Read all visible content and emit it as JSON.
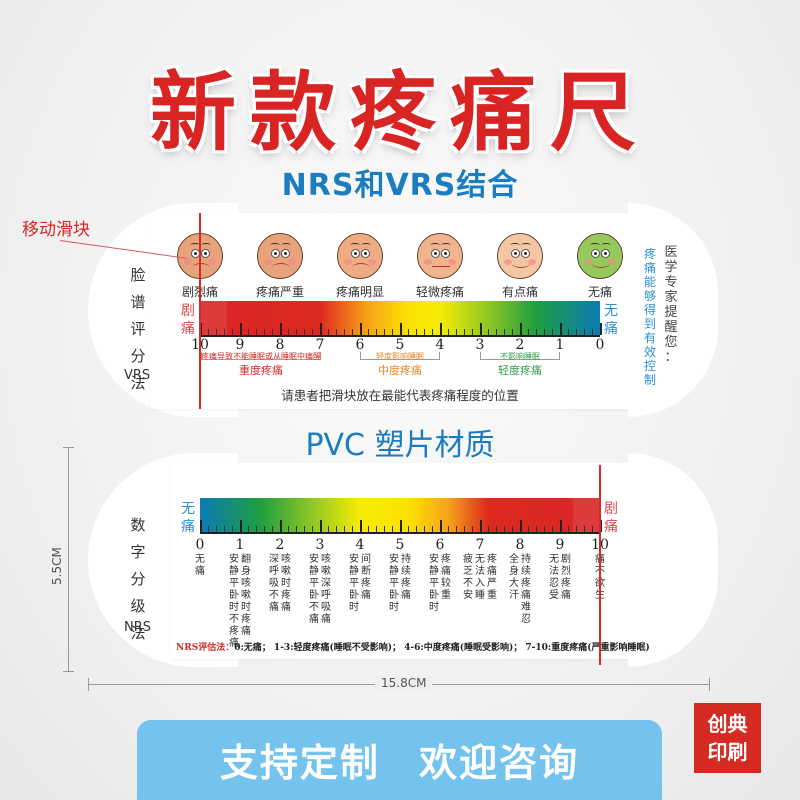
{
  "header": {
    "title": "新款疼痛尺",
    "subtitle": "NRS和VRS结合"
  },
  "annotation": {
    "slider_label": "移动滑块"
  },
  "vrs_ruler": {
    "side_title": [
      "脸",
      "谱",
      "评",
      "分",
      "法"
    ],
    "abbr": "VRS",
    "faces": [
      {
        "label": "剧烈痛",
        "color": "#e8a27c",
        "mouth": "sad"
      },
      {
        "label": "疼痛严重",
        "color": "#e8a27c",
        "mouth": "sad"
      },
      {
        "label": "疼痛明显",
        "color": "#eeab84",
        "mouth": "sad"
      },
      {
        "label": "轻微疼痛",
        "color": "#f0b48f",
        "mouth": "flat"
      },
      {
        "label": "有点痛",
        "color": "#f5c6a4",
        "mouth": "smile"
      },
      {
        "label": "无痛",
        "color": "#95c95a",
        "mouth": "smile"
      }
    ],
    "left_end": "剧痛",
    "right_end": "无痛",
    "numbers": [
      "10",
      "9",
      "8",
      "7",
      "6",
      "5",
      "4",
      "3",
      "2",
      "1",
      "0"
    ],
    "ranges": [
      {
        "note": "疼痛导致不能睡眠或从睡眠中痛醒",
        "name": "重度疼痛",
        "color": "#d42a2a"
      },
      {
        "note": "轻度影响睡眠",
        "name": "中度疼痛",
        "color": "#e8862a"
      },
      {
        "note": "不影响睡眠",
        "name": "轻度疼痛",
        "color": "#2f9e4a"
      }
    ],
    "instruction": "请患者把滑块放在最能代表疼痛程度的位置",
    "side_note_blue": "疼痛能够得到有效控制",
    "side_note_gray": "医学专家提醒您："
  },
  "material": "PVC 塑片材质",
  "nrs_ruler": {
    "side_title": [
      "数",
      "字",
      "分",
      "级",
      "法"
    ],
    "abbr": "NRS",
    "left_end": "无痛",
    "right_end": "剧痛",
    "levels": [
      {
        "n": "0",
        "cols": [
          "无痛"
        ]
      },
      {
        "n": "1",
        "cols": [
          "安静平卧时不疼痛",
          "翻身咳嗽时疼痛"
        ]
      },
      {
        "n": "2",
        "cols": [
          "深呼吸不痛",
          "咳嗽时疼痛"
        ]
      },
      {
        "n": "3",
        "cols": [
          "安静平卧不痛",
          "咳嗽深呼吸痛"
        ]
      },
      {
        "n": "4",
        "cols": [
          "安静平卧时",
          "间断疼痛"
        ]
      },
      {
        "n": "5",
        "cols": [
          "安静平卧时",
          "持续疼痛"
        ]
      },
      {
        "n": "6",
        "cols": [
          "安静平卧时",
          "疼痛较重"
        ]
      },
      {
        "n": "7",
        "cols": [
          "疲乏不安",
          "无法入睡",
          "疼痛严重"
        ]
      },
      {
        "n": "8",
        "cols": [
          "全身大汗",
          "持续疼痛难忍"
        ]
      },
      {
        "n": "9",
        "cols": [
          "无法忍受",
          "剧烈疼痛"
        ]
      },
      {
        "n": "10",
        "cols": [
          "痛不欲生"
        ]
      }
    ],
    "legend_label": "NRS评估法：",
    "legend_text": "0:无痛； 1-3:轻度疼痛(睡眠不受影响)； 4-6:中度疼痛(睡眠受影响)； 7-10:重度疼痛(严重影响睡眠)"
  },
  "dimensions": {
    "height": "5.5CM",
    "width": "15.8CM"
  },
  "cta": {
    "text": "支持定制 欢迎咨询"
  },
  "brand": {
    "line1": "创典",
    "line2": "印刷"
  },
  "colors": {
    "title_red": "#d92424",
    "accent_blue": "#1a7dc2",
    "cta_blue": "#74c3ee",
    "brand_red": "#d42a22"
  }
}
